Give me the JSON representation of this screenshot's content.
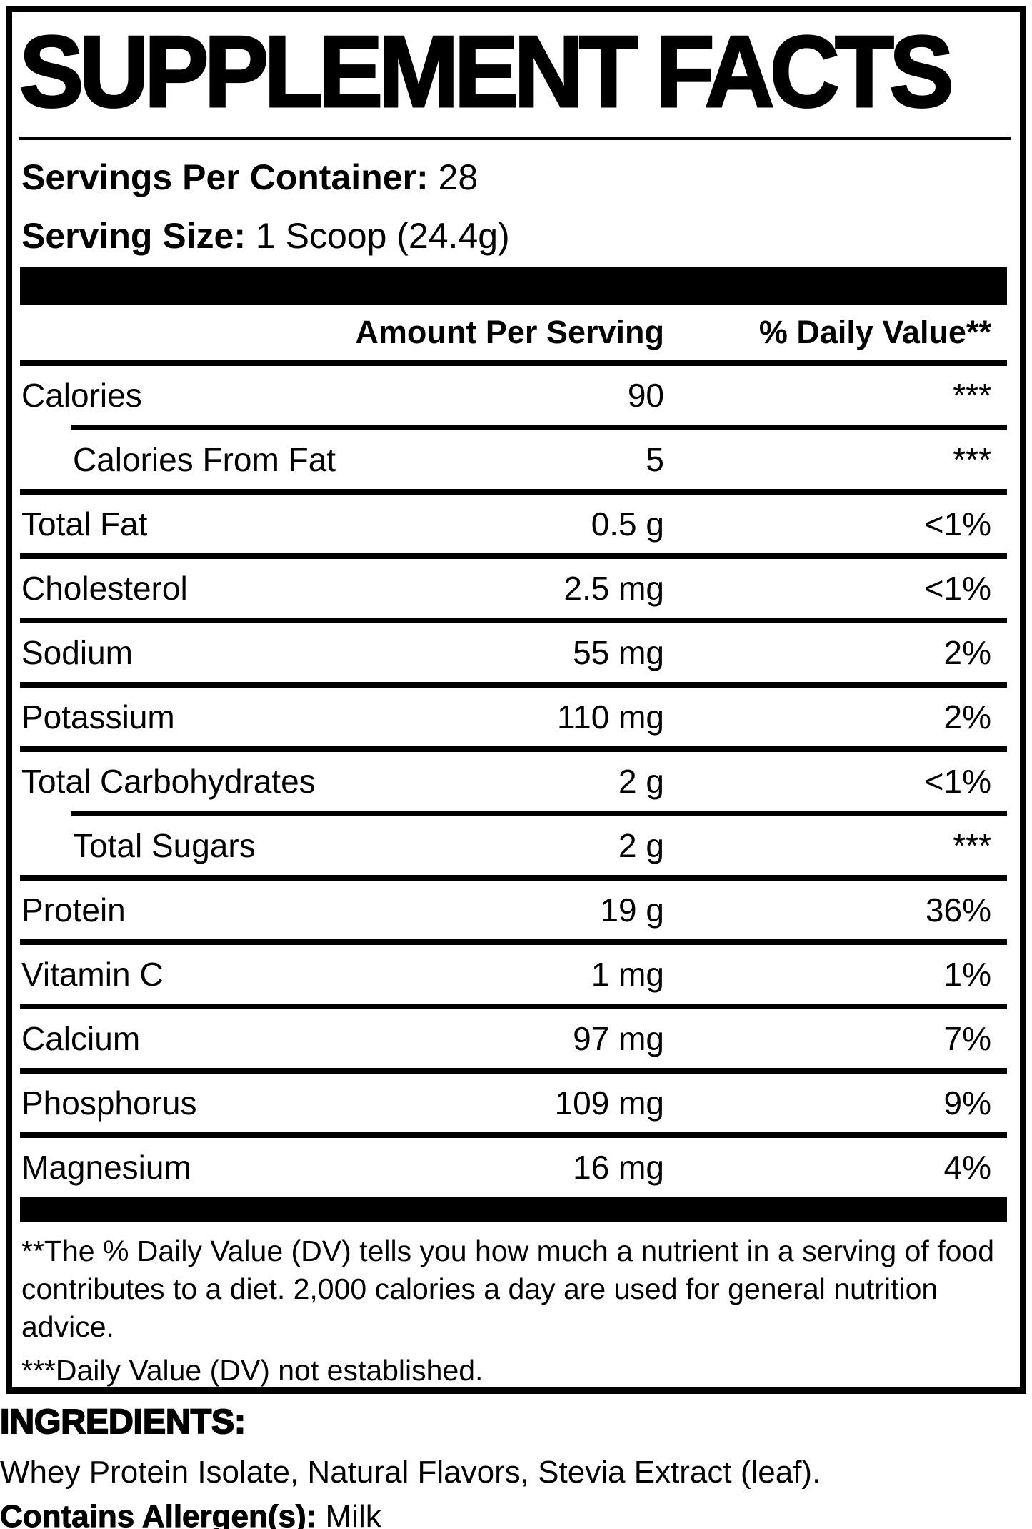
{
  "colors": {
    "ink": "#000000",
    "paper": "#ffffff"
  },
  "label": {
    "title": "SUPPLEMENT FACTS",
    "servings_per_container": {
      "label": "Servings Per Container:",
      "value": "28"
    },
    "serving_size": {
      "label": "Serving Size:",
      "value": "1 Scoop (24.4g)"
    },
    "columns": {
      "amount": "Amount Per Serving",
      "daily_value": "% Daily Value**"
    },
    "rows": [
      {
        "name": "Calories",
        "amount": "90",
        "dv": "***",
        "indent": false,
        "rule": "indent"
      },
      {
        "name": "Calories From Fat",
        "amount": "5",
        "dv": "***",
        "indent": true,
        "rule": "full"
      },
      {
        "name": "Total Fat",
        "amount": "0.5 g",
        "dv": "<1%",
        "indent": false,
        "rule": "full"
      },
      {
        "name": "Cholesterol",
        "amount": "2.5 mg",
        "dv": "<1%",
        "indent": false,
        "rule": "full"
      },
      {
        "name": "Sodium",
        "amount": "55 mg",
        "dv": "2%",
        "indent": false,
        "rule": "full"
      },
      {
        "name": "Potassium",
        "amount": "110 mg",
        "dv": "2%",
        "indent": false,
        "rule": "full"
      },
      {
        "name": "Total Carbohydrates",
        "amount": "2 g",
        "dv": "<1%",
        "indent": false,
        "rule": "indent"
      },
      {
        "name": "Total Sugars",
        "amount": "2 g",
        "dv": "***",
        "indent": true,
        "rule": "full"
      },
      {
        "name": "Protein",
        "amount": "19 g",
        "dv": "36%",
        "indent": false,
        "rule": "full"
      },
      {
        "name": "Vitamin C",
        "amount": "1 mg",
        "dv": "1%",
        "indent": false,
        "rule": "full"
      },
      {
        "name": "Calcium",
        "amount": "97 mg",
        "dv": "7%",
        "indent": false,
        "rule": "full"
      },
      {
        "name": "Phosphorus",
        "amount": "109 mg",
        "dv": "9%",
        "indent": false,
        "rule": "full"
      },
      {
        "name": "Magnesium",
        "amount": "16 mg",
        "dv": "4%",
        "indent": false,
        "rule": "none"
      }
    ],
    "footnotes": [
      "**The % Daily Value (DV) tells you how much a nutrient in a serving of food contributes to a diet. 2,000 calories a day are used for general nutrition advice.",
      "***Daily Value (DV) not established."
    ]
  },
  "ingredients": {
    "heading": "INGREDIENTS:",
    "list": "Whey Protein Isolate, Natural Flavors, Stevia Extract (leaf).",
    "allergen_label": "Contains Allergen(s):",
    "allergen_value": "Milk"
  }
}
